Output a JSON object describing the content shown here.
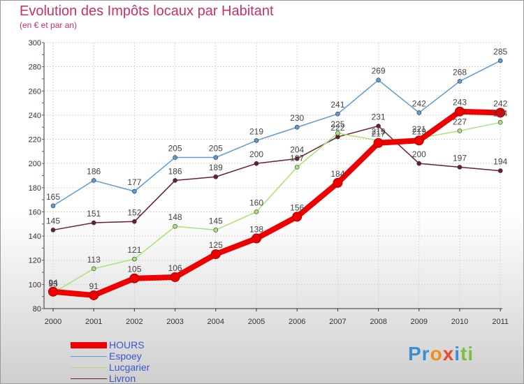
{
  "header": {
    "title": "Evolution des Impôts locaux par Habitant",
    "subtitle": "(en € et par an)"
  },
  "logo": {
    "text_parts": [
      "Pr",
      "o",
      "x",
      "i",
      "t",
      "i"
    ],
    "colors": [
      "#3a8fd4",
      "#f0901a",
      "#e84a2a",
      "#3a8fd4",
      "#7cbf3a",
      "#7cbf3a"
    ]
  },
  "chart_data": {
    "type": "line",
    "title": "Evolution des Impôts locaux par Habitant",
    "subtitle": "(en € et par an)",
    "xlabel": "",
    "ylabel": "",
    "x": [
      "2000",
      "2001",
      "2002",
      "2003",
      "2004",
      "2005",
      "2006",
      "2007",
      "2008",
      "2009",
      "2010",
      "2011"
    ],
    "ylim": [
      80,
      300
    ],
    "yticks": [
      80,
      100,
      120,
      140,
      160,
      180,
      200,
      220,
      240,
      260,
      280,
      300
    ],
    "grid": true,
    "legend_position": "bottom-left",
    "series": [
      {
        "name": "Espoey",
        "color": "#5b9bd5",
        "values": [
          165,
          186,
          177,
          205,
          205,
          219,
          230,
          241,
          269,
          242,
          268,
          285
        ],
        "labels": [
          "165",
          "186",
          "177",
          "205",
          "205",
          "219",
          "230",
          "241",
          "269",
          "242",
          "268",
          "285"
        ]
      },
      {
        "name": "Livron",
        "color": "#6e1e26",
        "values": [
          145,
          151,
          152,
          186,
          189,
          200,
          204,
          222,
          231,
          200,
          197,
          194
        ],
        "labels": [
          "145",
          "151",
          "152",
          "186",
          "189",
          "200",
          "204",
          "222",
          "231",
          "200",
          "197",
          "194"
        ]
      },
      {
        "name": "Lucgarier",
        "color": "#a8e27a",
        "values": [
          93,
          113,
          121,
          148,
          145,
          160,
          197,
          225,
          219,
          221,
          227,
          234
        ],
        "labels": [
          "93",
          "113",
          "121",
          "148",
          "145",
          "160",
          "197",
          "225",
          "219",
          "221",
          "227",
          "234"
        ]
      },
      {
        "name": "HOURS",
        "color": "#ee0000",
        "values": [
          94,
          91,
          105,
          106,
          125,
          138,
          156,
          184,
          217,
          219,
          243,
          242
        ],
        "labels": [
          "94",
          "91",
          "105",
          "106",
          "125",
          "138",
          "156",
          "184",
          "217",
          "219",
          "243",
          "242"
        ]
      }
    ],
    "legend": [
      {
        "name": "HOURS",
        "color": "#ee0000"
      },
      {
        "name": "Espoey",
        "color": "#5b9bd5"
      },
      {
        "name": "Lucgarier",
        "color": "#a8e27a"
      },
      {
        "name": "Livron",
        "color": "#6e1e26"
      }
    ]
  }
}
